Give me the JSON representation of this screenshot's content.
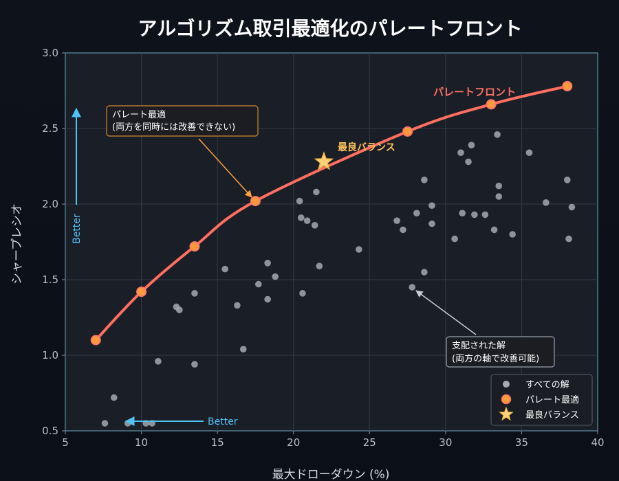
{
  "chart_data": {
    "type": "scatter",
    "title": "アルゴリズム取引最適化のパレートフロント",
    "xlabel": "最大ドローダウン (%)",
    "ylabel": "シャープレシオ",
    "xlim": [
      5,
      40
    ],
    "ylim": [
      0.5,
      3.0
    ],
    "x_ticks": [
      "5",
      "10",
      "15",
      "20",
      "25",
      "30",
      "35",
      "40"
    ],
    "y_ticks": [
      "0.5",
      "1.0",
      "1.5",
      "2.0",
      "2.5",
      "3.0"
    ],
    "grid": true,
    "legend_position": "bottom-right",
    "series": [
      {
        "name": "すべての解",
        "color": "#a3a8b3",
        "points": [
          [
            7.6,
            0.55
          ],
          [
            8.2,
            0.72
          ],
          [
            9.1,
            0.55
          ],
          [
            10.3,
            0.55
          ],
          [
            10.7,
            0.55
          ],
          [
            11.1,
            0.96
          ],
          [
            12.3,
            1.32
          ],
          [
            12.5,
            1.3
          ],
          [
            13.5,
            1.41
          ],
          [
            13.5,
            0.94
          ],
          [
            15.5,
            1.57
          ],
          [
            16.3,
            1.33
          ],
          [
            16.7,
            1.04
          ],
          [
            17.7,
            1.47
          ],
          [
            18.3,
            1.61
          ],
          [
            18.3,
            1.37
          ],
          [
            18.8,
            1.52
          ],
          [
            20.4,
            2.02
          ],
          [
            20.5,
            1.91
          ],
          [
            20.6,
            1.41
          ],
          [
            20.9,
            1.89
          ],
          [
            21.4,
            1.86
          ],
          [
            21.5,
            2.08
          ],
          [
            21.7,
            1.59
          ],
          [
            24.3,
            1.7
          ],
          [
            26.8,
            1.89
          ],
          [
            27.2,
            1.83
          ],
          [
            27.8,
            1.45
          ],
          [
            28.1,
            1.94
          ],
          [
            28.6,
            2.16
          ],
          [
            28.6,
            1.55
          ],
          [
            29.1,
            1.87
          ],
          [
            29.1,
            1.99
          ],
          [
            30.6,
            1.77
          ],
          [
            31.0,
            2.34
          ],
          [
            31.1,
            1.94
          ],
          [
            31.5,
            2.28
          ],
          [
            31.7,
            2.39
          ],
          [
            31.9,
            1.93
          ],
          [
            32.6,
            1.93
          ],
          [
            33.2,
            1.83
          ],
          [
            33.4,
            2.46
          ],
          [
            33.5,
            2.12
          ],
          [
            33.5,
            2.05
          ],
          [
            34.4,
            1.8
          ],
          [
            35.5,
            2.34
          ],
          [
            36.6,
            2.01
          ],
          [
            38.0,
            2.16
          ],
          [
            38.1,
            1.77
          ],
          [
            38.3,
            1.98
          ]
        ]
      },
      {
        "name": "パレート最適",
        "color": "#ff7a66",
        "marker_color": "#ff9a3c",
        "line_label": "パレートフロント",
        "points": [
          [
            7.0,
            1.1
          ],
          [
            10.0,
            1.42
          ],
          [
            13.5,
            1.72
          ],
          [
            17.5,
            2.02
          ],
          [
            27.5,
            2.48
          ],
          [
            33.0,
            2.66
          ],
          [
            38.0,
            2.78
          ]
        ]
      },
      {
        "name": "最良バランス",
        "color": "#ffd27a",
        "points": [
          [
            22.0,
            2.28
          ]
        ]
      }
    ],
    "annotations": [
      {
        "id": "pareto-optimal-note",
        "lines": [
          "パレート最適",
          "(両方を同時には改善できない)"
        ],
        "target": [
          17.5,
          2.03
        ],
        "color": "#ffa040"
      },
      {
        "id": "dominated-note",
        "lines": [
          "支配された解",
          "(両方の軸で改善可能)"
        ],
        "target": [
          27.8,
          1.44
        ],
        "color": "#c7ccd6"
      },
      {
        "id": "best-balance-label",
        "text": "最良バランス",
        "color": "#ffc45a"
      },
      {
        "id": "better-x-label",
        "text": "Better",
        "color": "#4fc3f7"
      },
      {
        "id": "better-y-label",
        "text": "Better",
        "color": "#4fc3f7"
      }
    ]
  }
}
